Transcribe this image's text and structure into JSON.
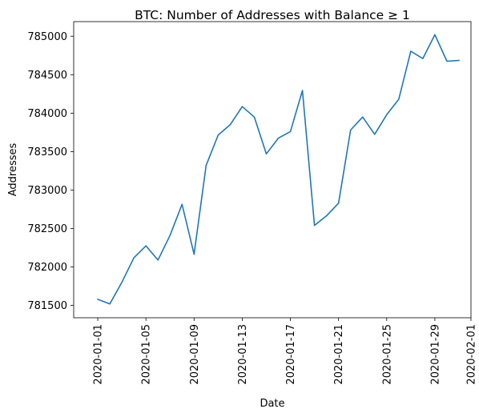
{
  "chart_data": {
    "type": "line",
    "title": "BTC: Number of Addresses with Balance ≥ 1",
    "xlabel": "Date",
    "ylabel": "Addresses",
    "x_ticks": [
      "2020-01-01",
      "2020-01-05",
      "2020-01-09",
      "2020-01-13",
      "2020-01-17",
      "2020-01-21",
      "2020-01-25",
      "2020-01-29",
      "2020-02-01"
    ],
    "y_ticks": [
      781500,
      782000,
      782500,
      783000,
      783500,
      784000,
      784500,
      785000
    ],
    "ylim": [
      781340,
      785190
    ],
    "xlim": [
      "2019-12-30",
      "2020-02-01"
    ],
    "grid": false,
    "color": "#1f77b4",
    "series": [
      {
        "x": [
          "2020-01-01",
          "2020-01-02",
          "2020-01-03",
          "2020-01-04",
          "2020-01-05",
          "2020-01-06",
          "2020-01-07",
          "2020-01-08",
          "2020-01-09",
          "2020-01-10",
          "2020-01-11",
          "2020-01-12",
          "2020-01-13",
          "2020-01-14",
          "2020-01-15",
          "2020-01-16",
          "2020-01-17",
          "2020-01-18",
          "2020-01-19",
          "2020-01-20",
          "2020-01-21",
          "2020-01-22",
          "2020-01-23",
          "2020-01-24",
          "2020-01-25",
          "2020-01-26",
          "2020-01-27",
          "2020-01-28",
          "2020-01-29",
          "2020-01-30",
          "2020-01-31"
        ],
        "values": [
          781580,
          781520,
          781800,
          782120,
          782275,
          782090,
          782410,
          782815,
          782165,
          783320,
          783715,
          783850,
          784085,
          783950,
          783470,
          783675,
          783760,
          784295,
          782540,
          782665,
          782830,
          783780,
          783950,
          783725,
          783980,
          784180,
          784805,
          784710,
          785020,
          784675,
          784685
        ]
      }
    ]
  }
}
